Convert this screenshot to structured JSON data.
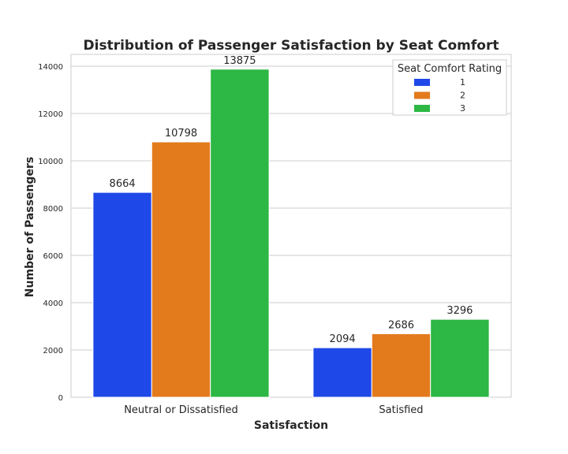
{
  "chart_data": {
    "type": "bar",
    "title": "Distribution of Passenger Satisfaction by Seat Comfort",
    "xlabel": "Satisfaction",
    "ylabel": "Number of Passengers",
    "categories": [
      "Neutral or Dissatisfied",
      "Satisfied"
    ],
    "series": [
      {
        "name": "1",
        "color": "#1f48e8",
        "values": [
          8664,
          2094
        ]
      },
      {
        "name": "2",
        "color": "#e37b1d",
        "values": [
          10798,
          2686
        ]
      },
      {
        "name": "3",
        "color": "#2db744",
        "values": [
          13875,
          3296
        ]
      }
    ],
    "ylim": [
      0,
      14500
    ],
    "yticks": [
      0,
      2000,
      4000,
      6000,
      8000,
      10000,
      12000,
      14000
    ],
    "grid": true,
    "legend": {
      "title": "Seat Comfort Rating",
      "placement": "top-right"
    },
    "data_labels": true
  }
}
